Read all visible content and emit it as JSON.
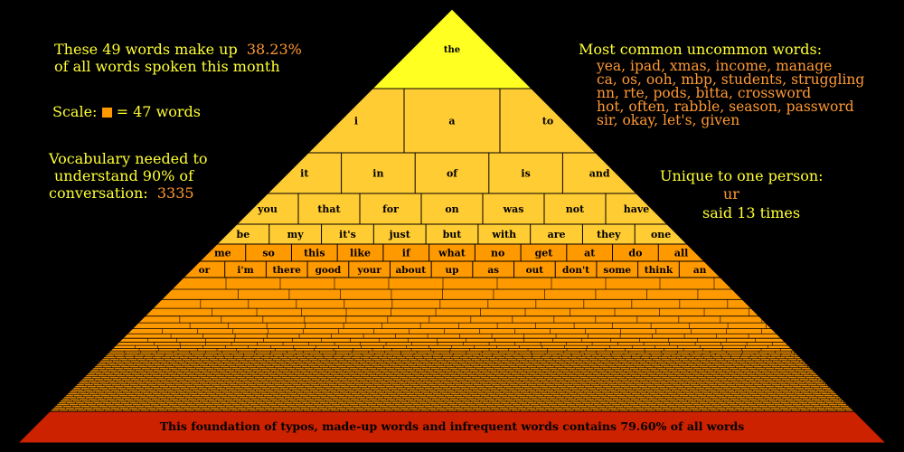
{
  "header_left": {
    "line1": "These 49 words make up",
    "percent": "38.23%",
    "line2": "of all words spoken this month"
  },
  "scale": {
    "label": "Scale:",
    "equals": "= 47 words"
  },
  "vocabulary": {
    "line1": "Vocabulary needed to",
    "line2": "understand 90% of",
    "line3": "conversation:",
    "value": "3335"
  },
  "uncommon": {
    "title": "Most common uncommon words:",
    "lines": [
      "yea, ipad, xmas, income, manage",
      "ca, os, ooh, mbp, students, struggling",
      "nn, rte, pods, bitta, crossword",
      "hot, often, rabble, season, password",
      "sir, okay, let's, given"
    ]
  },
  "unique": {
    "title": "Unique to one person:",
    "word": "ur",
    "times": "said 13 times"
  },
  "pyramid": {
    "rows": [
      [
        "the"
      ],
      [
        "i",
        "a",
        "to"
      ],
      [
        "it",
        "in",
        "of",
        "is",
        "and"
      ],
      [
        "you",
        "that",
        "for",
        "on",
        "was",
        "not",
        "have"
      ],
      [
        "be",
        "my",
        "it's",
        "just",
        "but",
        "with",
        "are",
        "they",
        "one"
      ],
      [
        "me",
        "so",
        "this",
        "like",
        "if",
        "what",
        "no",
        "get",
        "at",
        "do",
        "all"
      ],
      [
        "or",
        "i'm",
        "there",
        "good",
        "your",
        "about",
        "up",
        "as",
        "out",
        "don't",
        "some",
        "think",
        "an"
      ]
    ],
    "foundation": "This foundation of typos, made-up words and infrequent words contains 79.60% of all words",
    "colors": {
      "top": "#ffff22",
      "mid": "#ffcc33",
      "low": "#ff9900",
      "base": "#cc2200",
      "outline": "#000000"
    }
  }
}
